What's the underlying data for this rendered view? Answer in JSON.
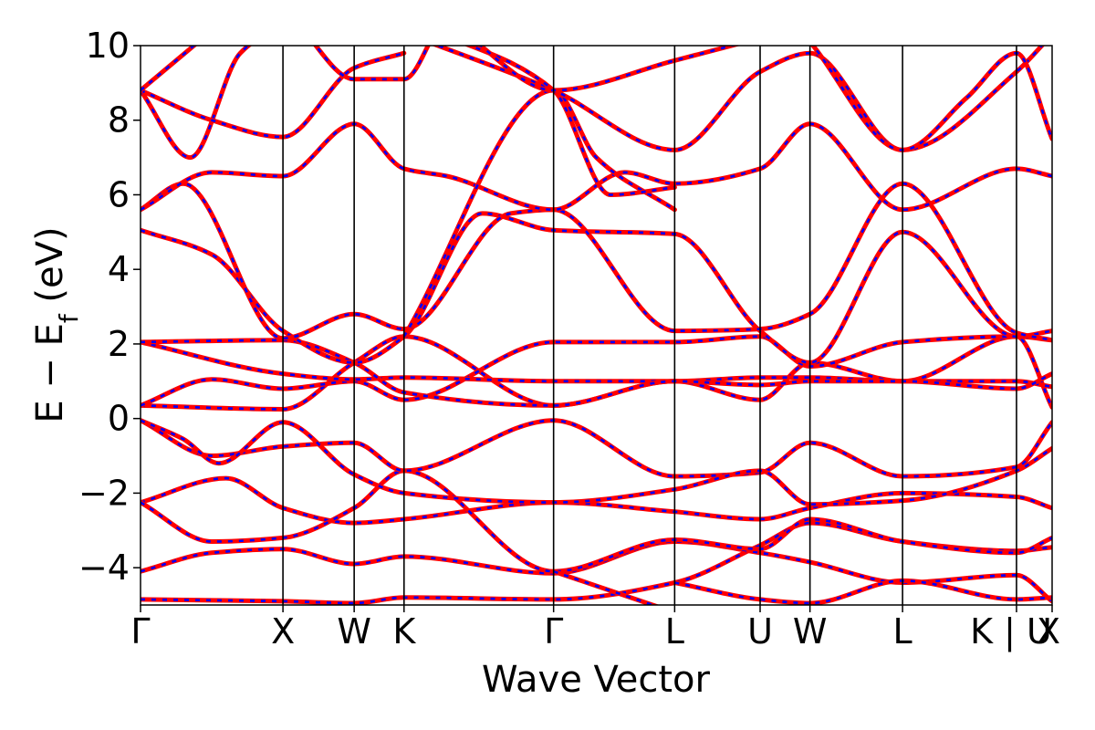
{
  "chart_data": {
    "type": "line",
    "title": "",
    "xlabel": "Wave Vector",
    "ylabel_main": "E − E",
    "ylabel_sub": "f",
    "ylabel_unit": " (eV)",
    "ylim": [
      -5,
      10
    ],
    "yticks": [
      10,
      8,
      6,
      4,
      2,
      0,
      -2,
      -4
    ],
    "ytick_labels": [
      "10",
      "8",
      "6",
      "4",
      "2",
      "0",
      "−2",
      "−4"
    ],
    "xlim": [
      0,
      12.8
    ],
    "kpoints": [
      {
        "label": "Γ",
        "x": 0
      },
      {
        "label": "X",
        "x": 2
      },
      {
        "label": "W",
        "x": 3
      },
      {
        "label": "K",
        "x": 3.7
      },
      {
        "label": "Γ",
        "x": 5.8
      },
      {
        "label": "L",
        "x": 7.5
      },
      {
        "label": "U",
        "x": 8.7
      },
      {
        "label": "W",
        "x": 9.4
      },
      {
        "label": "L",
        "x": 10.7
      },
      {
        "label": "K | U",
        "x": 12.3
      },
      {
        "label": "X",
        "x": 12.8
      }
    ],
    "series_colors": {
      "primary": "#ff0000",
      "overlay": "#0000ff"
    },
    "grid": false,
    "legend": "none",
    "bands": [
      [
        [
          0,
          -4.85
        ],
        [
          2,
          -4.9
        ],
        [
          3,
          -4.95
        ],
        [
          3.7,
          -4.8
        ],
        [
          5.8,
          -4.85
        ],
        [
          7.5,
          -4.4
        ],
        [
          8.7,
          -3.4
        ],
        [
          9.4,
          -2.8
        ],
        [
          10.7,
          -3.3
        ],
        [
          12.3,
          -3.55
        ],
        [
          12.8,
          -3.45
        ]
      ],
      [
        [
          0,
          -4.1
        ],
        [
          1,
          -3.6
        ],
        [
          2,
          -3.5
        ],
        [
          3,
          -3.9
        ],
        [
          3.7,
          -3.7
        ],
        [
          5.8,
          -4.15
        ],
        [
          7.5,
          -3.3
        ],
        [
          8.7,
          -3.6
        ],
        [
          9.4,
          -3.85
        ],
        [
          10.7,
          -4.4
        ],
        [
          12.3,
          -4.2
        ],
        [
          12.8,
          -4.9
        ]
      ],
      [
        [
          0,
          -2.25
        ],
        [
          1.2,
          -1.6
        ],
        [
          2,
          -2.4
        ],
        [
          3,
          -2.8
        ],
        [
          3.7,
          -2.7
        ],
        [
          5.8,
          -2.25
        ],
        [
          7.5,
          -2.5
        ],
        [
          8.7,
          -2.7
        ],
        [
          9.4,
          -2.4
        ],
        [
          10.7,
          -2.0
        ],
        [
          12.3,
          -2.1
        ],
        [
          12.8,
          -2.4
        ]
      ],
      [
        [
          0,
          -2.25
        ],
        [
          1,
          -3.3
        ],
        [
          2,
          -3.2
        ],
        [
          3,
          -2.4
        ],
        [
          3.7,
          -1.4
        ],
        [
          5.8,
          -4.1
        ],
        [
          7.5,
          -3.25
        ],
        [
          8.7,
          -3.5
        ],
        [
          9.4,
          -2.7
        ],
        [
          10.7,
          -3.3
        ],
        [
          12.3,
          -3.6
        ],
        [
          12.8,
          -3.2
        ]
      ],
      [
        [
          0,
          -0.05
        ],
        [
          1,
          -1.0
        ],
        [
          2,
          -0.75
        ],
        [
          3,
          -0.65
        ],
        [
          3.7,
          -1.4
        ],
        [
          5.8,
          -0.05
        ],
        [
          7.5,
          -1.55
        ],
        [
          8.7,
          -1.45
        ],
        [
          9.4,
          -0.65
        ],
        [
          10.7,
          -1.55
        ],
        [
          12.3,
          -1.3
        ],
        [
          12.8,
          -0.1
        ]
      ],
      [
        [
          0,
          -0.05
        ],
        [
          0.6,
          -0.55
        ],
        [
          1.1,
          -1.2
        ],
        [
          2,
          -0.1
        ],
        [
          3,
          -1.5
        ],
        [
          3.7,
          -2.0
        ],
        [
          5.8,
          -2.25
        ],
        [
          7.5,
          -1.9
        ],
        [
          8.7,
          -1.4
        ],
        [
          9.4,
          -2.3
        ],
        [
          10.7,
          -2.2
        ],
        [
          12.3,
          -1.4
        ],
        [
          12.8,
          -0.8
        ]
      ],
      [
        [
          0,
          0.35
        ],
        [
          2,
          0.25
        ],
        [
          3,
          1.5
        ],
        [
          3.7,
          2.2
        ],
        [
          5.8,
          0.35
        ],
        [
          7.5,
          1.0
        ],
        [
          8.7,
          0.5
        ],
        [
          9.4,
          1.5
        ],
        [
          10.7,
          1.0
        ],
        [
          12.3,
          2.2
        ],
        [
          12.8,
          0.3
        ]
      ],
      [
        [
          0,
          0.35
        ],
        [
          1,
          1.05
        ],
        [
          2,
          0.8
        ],
        [
          3,
          1.0
        ],
        [
          3.7,
          0.5
        ],
        [
          5.8,
          2.05
        ],
        [
          7.5,
          2.05
        ],
        [
          8.7,
          2.2
        ],
        [
          9.4,
          1.4
        ],
        [
          10.7,
          2.05
        ],
        [
          12.3,
          2.2
        ],
        [
          12.8,
          2.1
        ]
      ],
      [
        [
          0,
          2.05
        ],
        [
          2,
          1.2
        ],
        [
          3,
          1.05
        ],
        [
          3.7,
          1.1
        ],
        [
          5.8,
          1.0
        ],
        [
          7.5,
          1.0
        ],
        [
          8.7,
          1.1
        ],
        [
          9.4,
          1.1
        ],
        [
          10.7,
          1.0
        ],
        [
          12.3,
          1.0
        ],
        [
          12.8,
          0.85
        ]
      ],
      [
        [
          0,
          2.05
        ],
        [
          2,
          2.1
        ],
        [
          3,
          1.5
        ],
        [
          3.7,
          0.7
        ],
        [
          5.8,
          0.35
        ],
        [
          7.5,
          1.0
        ],
        [
          8.7,
          0.9
        ],
        [
          9.4,
          1.0
        ],
        [
          10.7,
          1.0
        ],
        [
          12.3,
          0.8
        ],
        [
          12.8,
          1.2
        ]
      ],
      [
        [
          0,
          5.05
        ],
        [
          1,
          4.4
        ],
        [
          2,
          2.35
        ],
        [
          3,
          1.5
        ],
        [
          3.7,
          2.2
        ],
        [
          4.8,
          5.5
        ],
        [
          5.8,
          5.05
        ],
        [
          7.5,
          4.95
        ],
        [
          8.7,
          2.35
        ],
        [
          9.4,
          1.5
        ],
        [
          10.7,
          5.0
        ],
        [
          12.3,
          2.2
        ],
        [
          12.8,
          2.35
        ]
      ],
      [
        [
          0,
          5.6
        ],
        [
          0.6,
          6.3
        ],
        [
          2,
          2.15
        ],
        [
          3,
          2.8
        ],
        [
          3.7,
          2.4
        ],
        [
          5.2,
          5.5
        ],
        [
          5.8,
          5.6
        ],
        [
          7.5,
          2.35
        ],
        [
          8.7,
          2.4
        ],
        [
          9.4,
          2.8
        ],
        [
          10.7,
          6.3
        ],
        [
          12.3,
          2.3
        ],
        [
          12.8,
          2.1
        ]
      ],
      [
        [
          0,
          5.6
        ],
        [
          1,
          6.6
        ],
        [
          2,
          6.5
        ],
        [
          3,
          7.9
        ],
        [
          3.7,
          6.7
        ],
        [
          4.3,
          6.5
        ],
        [
          5.8,
          5.6
        ],
        [
          6.8,
          6.6
        ],
        [
          7.5,
          6.3
        ],
        [
          8.7,
          6.7
        ],
        [
          9.4,
          7.9
        ],
        [
          10.7,
          5.6
        ],
        [
          12.3,
          6.7
        ],
        [
          12.8,
          6.5
        ]
      ],
      [
        [
          0,
          8.8
        ],
        [
          0.7,
          7.0
        ],
        [
          1.4,
          9.8
        ],
        [
          2,
          10.6
        ]
      ],
      [
        [
          0,
          8.8
        ],
        [
          1,
          8.0
        ],
        [
          2,
          7.55
        ],
        [
          3,
          9.4
        ],
        [
          3.7,
          9.8
        ]
      ],
      [
        [
          0,
          8.8
        ],
        [
          0.5,
          9.6
        ],
        [
          1,
          10.4
        ]
      ],
      [
        [
          2.2,
          10.6
        ],
        [
          3,
          9.1
        ],
        [
          3.7,
          9.1
        ],
        [
          4.2,
          10.6
        ]
      ],
      [
        [
          3.7,
          2.2
        ],
        [
          5.8,
          8.8
        ],
        [
          6.4,
          7.0
        ],
        [
          7.5,
          5.6
        ]
      ],
      [
        [
          3.9,
          10.2
        ],
        [
          5.8,
          8.8
        ],
        [
          7.5,
          7.2
        ],
        [
          8.7,
          9.3
        ],
        [
          9.4,
          9.8
        ],
        [
          10.7,
          7.2
        ],
        [
          12.3,
          9.3
        ],
        [
          12.8,
          10.3
        ]
      ],
      [
        [
          4.0,
          10.5
        ],
        [
          5.8,
          8.8
        ],
        [
          6.6,
          6.0
        ],
        [
          7.5,
          6.2
        ]
      ],
      [
        [
          4.5,
          10.4
        ],
        [
          5.8,
          8.8
        ],
        [
          7.5,
          9.6
        ],
        [
          8.7,
          10.2
        ]
      ],
      [
        [
          5.8,
          -4.1
        ],
        [
          7.5,
          -5.2
        ]
      ],
      [
        [
          7.5,
          -4.4
        ],
        [
          8.7,
          -4.85
        ],
        [
          9.4,
          -4.95
        ],
        [
          10.7,
          -4.35
        ],
        [
          12.3,
          -4.85
        ],
        [
          12.8,
          -4.8
        ]
      ],
      [
        [
          9.4,
          10.1
        ],
        [
          10.7,
          7.2
        ],
        [
          11.6,
          8.6
        ],
        [
          12.3,
          9.8
        ],
        [
          12.8,
          7.5
        ]
      ]
    ]
  }
}
